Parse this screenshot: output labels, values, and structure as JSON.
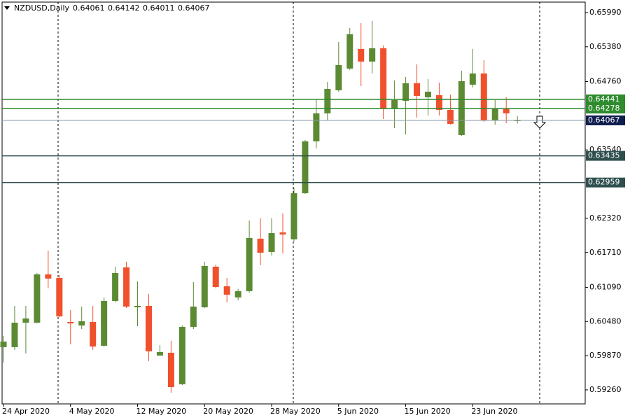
{
  "chart_data": {
    "type": "candlestick",
    "title": "NZDUSD,Daily",
    "categories": [
      "24 Apr 2020",
      null,
      null,
      null,
      null,
      null,
      "4 May 2020",
      null,
      null,
      null,
      null,
      null,
      "12 May 2020",
      null,
      null,
      null,
      null,
      null,
      "20 May 2020",
      null,
      null,
      null,
      null,
      null,
      "28 May 2020",
      null,
      null,
      null,
      null,
      null,
      "5 Jun 2020",
      null,
      null,
      null,
      null,
      null,
      "15 Jun 2020",
      null,
      null,
      null,
      null,
      null,
      "23 Jun 2020",
      null,
      null,
      null,
      null
    ],
    "open": [
      0.60022,
      0.60022,
      0.60459,
      0.60459,
      0.6132,
      0.61258,
      0.60471,
      0.60409,
      0.60471,
      0.60047,
      0.60846,
      0.61445,
      0.60733,
      0.60758,
      0.59872,
      0.59922,
      0.5936,
      0.60384,
      0.60733,
      0.61458,
      0.61108,
      0.60908,
      0.61021,
      0.61957,
      0.6172,
      0.62069,
      0.61945,
      0.62768,
      0.63693,
      0.64192,
      0.64604,
      0.64991,
      0.65341,
      0.65116,
      0.65353,
      0.64279,
      0.64417,
      0.64729,
      0.64479,
      0.64517,
      0.64254,
      0.63805,
      0.64704,
      0.64904,
      0.64067,
      0.64279,
      0.64061
    ],
    "high": [
      0.60221,
      0.60758,
      0.60758,
      0.61345,
      0.61745,
      0.61308,
      0.60683,
      0.60746,
      0.60758,
      0.60908,
      0.61458,
      0.61545,
      0.61195,
      0.60971,
      0.60059,
      0.60134,
      0.60409,
      0.61183,
      0.61545,
      0.61495,
      0.61258,
      0.61058,
      0.62282,
      0.62319,
      0.62319,
      0.62407,
      0.62868,
      0.63718,
      0.64442,
      0.64754,
      0.65466,
      0.65715,
      0.65803,
      0.6584,
      0.65403,
      0.64779,
      0.64841,
      0.65066,
      0.64804,
      0.64741,
      0.64529,
      0.64954,
      0.65341,
      0.65141,
      0.64429,
      0.64479,
      0.64142
    ],
    "low": [
      0.59747,
      0.59972,
      0.59909,
      0.60446,
      0.61071,
      0.60559,
      0.60072,
      0.60346,
      0.59972,
      0.60034,
      0.60821,
      0.60721,
      0.60396,
      0.59772,
      0.59872,
      0.5921,
      0.59347,
      0.60346,
      0.60721,
      0.61071,
      0.60821,
      0.60858,
      0.60996,
      0.61483,
      0.61657,
      0.61695,
      0.61907,
      0.62756,
      0.63568,
      0.64067,
      0.64579,
      0.64966,
      0.64679,
      0.64904,
      0.64092,
      0.6393,
      0.63817,
      0.64117,
      0.64155,
      0.64155,
      0.63992,
      0.63792,
      0.64654,
      0.64042,
      0.63992,
      0.64017,
      0.64011
    ],
    "close": [
      0.60122,
      0.60459,
      0.60534,
      0.6132,
      0.61245,
      0.60571,
      0.60446,
      0.60484,
      0.60034,
      0.60846,
      0.61345,
      0.60746,
      0.60758,
      0.59947,
      0.59934,
      0.5931,
      0.60384,
      0.60746,
      0.6147,
      0.61095,
      0.60958,
      0.61021,
      0.6197,
      0.61707,
      0.62057,
      0.62032,
      0.62768,
      0.63693,
      0.64192,
      0.64629,
      0.65054,
      0.65603,
      0.65116,
      0.65353,
      0.64279,
      0.64429,
      0.64729,
      0.64504,
      0.64579,
      0.64254,
      0.64005,
      0.64766,
      0.64904,
      0.64067,
      0.64279,
      0.64192,
      0.64067
    ],
    "up_color": "#5b8a33",
    "down_color": "#f0502c",
    "ylim": [
      0.5901,
      0.66177
    ],
    "yticks": [
      {
        "value": 0.6599,
        "label": "0.65990"
      },
      {
        "value": 0.6538,
        "label": "0.65380"
      },
      {
        "value": 0.6476,
        "label": "0.64760"
      },
      {
        "value": 0.6354,
        "label": "0.63540"
      },
      {
        "value": 0.6232,
        "label": "0.62320"
      },
      {
        "value": 0.6171,
        "label": "0.61710"
      },
      {
        "value": 0.6109,
        "label": "0.61090"
      },
      {
        "value": 0.6048,
        "label": "0.60480"
      },
      {
        "value": 0.5987,
        "label": "0.59870"
      },
      {
        "value": 0.5926,
        "label": "0.59260"
      }
    ],
    "levels": [
      {
        "value": 0.64441,
        "color": "#2e8b2e"
      },
      {
        "value": 0.64278,
        "color": "#2e8b2e"
      },
      {
        "value": 0.63435,
        "color": "#2f4f4f"
      },
      {
        "value": 0.62959,
        "color": "#2f4f4f"
      }
    ],
    "price_color": "#0f1d4f"
  }
}
